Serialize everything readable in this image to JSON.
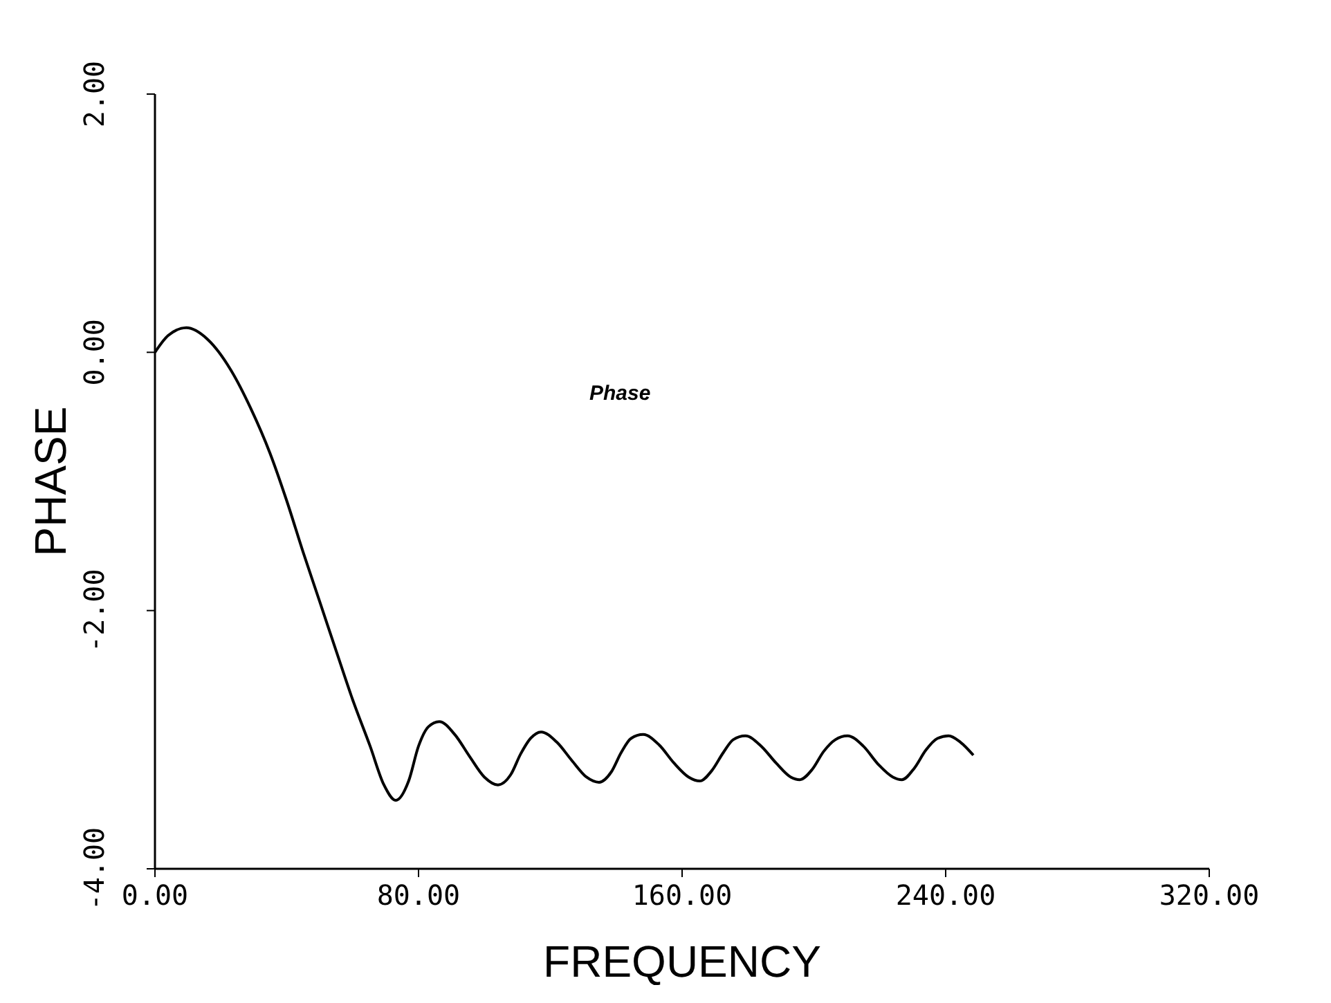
{
  "chart_data": {
    "type": "line",
    "xlabel": "FREQUENCY",
    "ylabel": "PHASE",
    "annotations": [
      "Phase"
    ],
    "xlim": [
      0,
      320
    ],
    "xticks": [
      {
        "value": 0,
        "label": "0.00"
      },
      {
        "value": 80,
        "label": "80.00"
      },
      {
        "value": 160,
        "label": "160.00"
      },
      {
        "value": 240,
        "label": "240.00"
      },
      {
        "value": 320,
        "label": "320.00"
      }
    ],
    "ylim": [
      -4,
      2
    ],
    "yticks": [
      {
        "value": -4,
        "label": "-4.00"
      },
      {
        "value": -2,
        "label": "-2.00"
      },
      {
        "value": 0,
        "label": "0.00"
      },
      {
        "value": 2,
        "label": "2.00"
      }
    ],
    "grid": false,
    "legend": false,
    "marker": "none",
    "line_style": "solid",
    "series": [
      {
        "color": "#000000",
        "x": [
          0,
          4,
          9.5,
          16,
          23.1,
          29,
          34.9,
          40,
          45,
          50,
          55.1,
          60,
          65.3,
          69.5,
          73.1,
          77,
          80,
          83,
          86.3,
          91,
          95.5,
          100,
          104.1,
          108,
          111,
          114,
          117.2,
          122,
          126.5,
          131,
          134.8,
          138.5,
          141.5,
          144.5,
          148.2,
          153,
          157.5,
          162,
          165.4,
          169,
          172.5,
          175.5,
          179.2,
          184,
          188.5,
          193,
          195.7,
          199.5,
          203,
          206.5,
          210.2,
          215,
          219.5,
          224,
          226.7,
          230.5,
          234,
          237.5,
          240.9,
          244.5,
          248.4
        ],
        "values": [
          0,
          0.13,
          0.19,
          0.1,
          -0.14,
          -0.43,
          -0.78,
          -1.15,
          -1.55,
          -1.93,
          -2.32,
          -2.69,
          -3.05,
          -3.35,
          -3.47,
          -3.32,
          -3.05,
          -2.9,
          -2.86,
          -2.96,
          -3.13,
          -3.29,
          -3.35,
          -3.27,
          -3.11,
          -2.99,
          -2.94,
          -3.02,
          -3.16,
          -3.29,
          -3.33,
          -3.25,
          -3.1,
          -2.99,
          -2.96,
          -3.04,
          -3.18,
          -3.29,
          -3.32,
          -3.24,
          -3.1,
          -3.0,
          -2.97,
          -3.05,
          -3.18,
          -3.29,
          -3.31,
          -3.23,
          -3.09,
          -3.0,
          -2.97,
          -3.05,
          -3.19,
          -3.29,
          -3.31,
          -3.22,
          -3.08,
          -2.99,
          -2.97,
          -3.02,
          -3.12
        ]
      }
    ]
  }
}
